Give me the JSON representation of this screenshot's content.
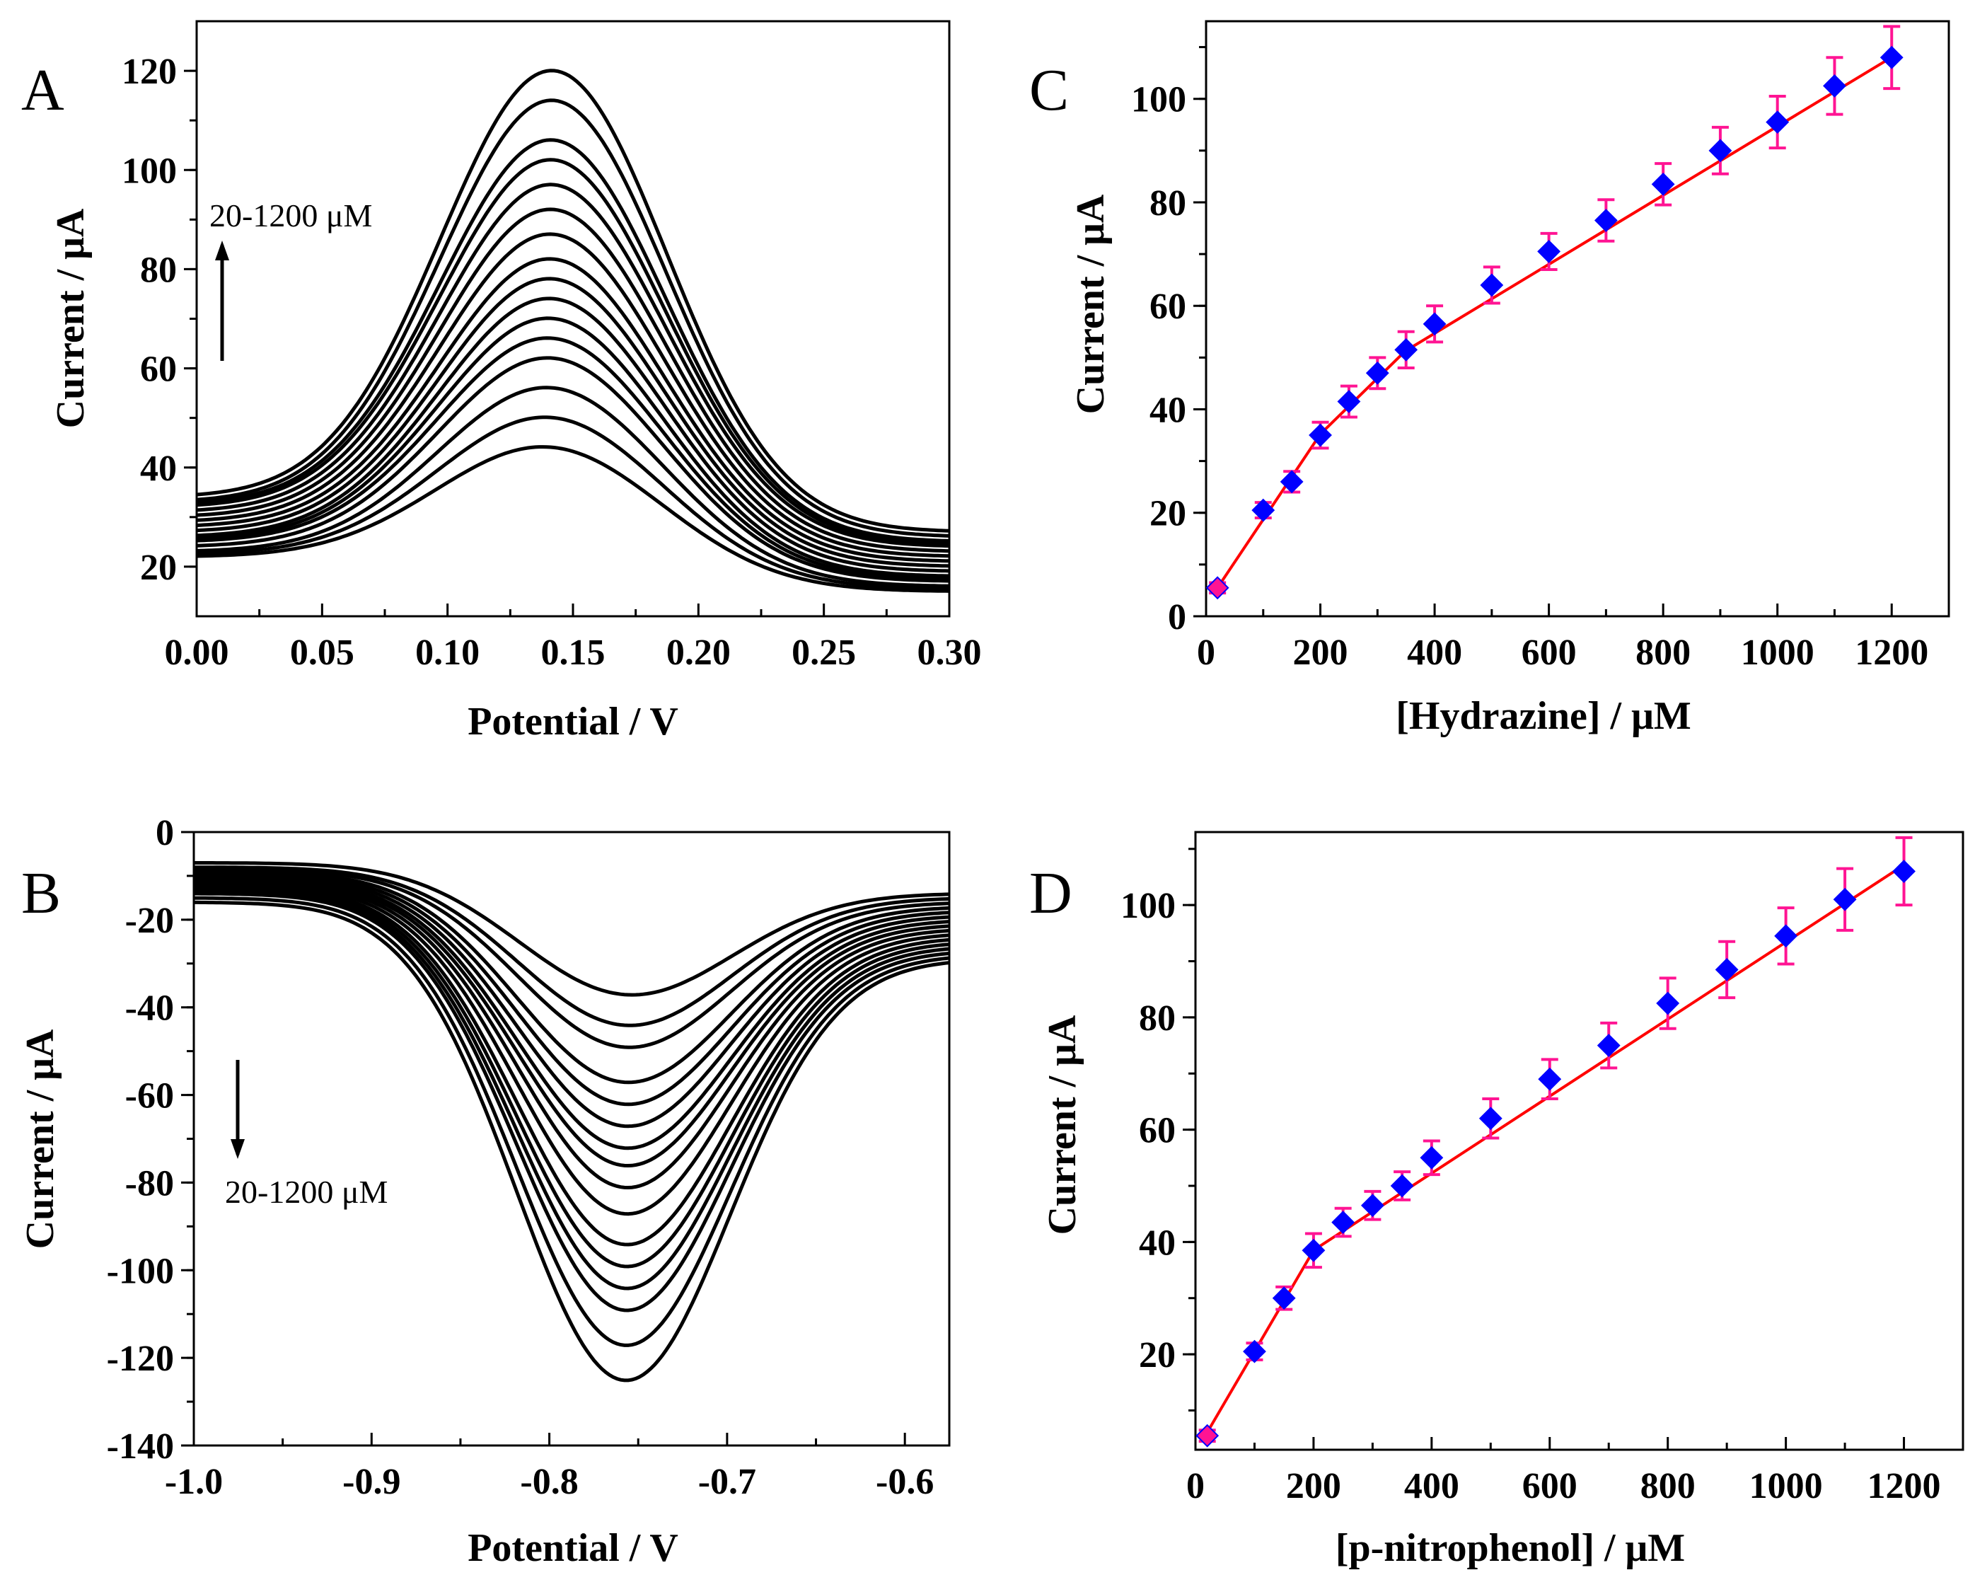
{
  "colors": {
    "axis": "#000000",
    "curve": "#000000",
    "fit": "#ff0000",
    "marker": "#0000ff",
    "error": "#ff1493",
    "first_marker": "#ff1493"
  },
  "chart_data": [
    {
      "panel": "A",
      "type": "line",
      "xlabel": "Potential / V",
      "ylabel": "Current / μA",
      "xlim": [
        0.0,
        0.3
      ],
      "ylim": [
        10,
        130
      ],
      "xticks": [
        0.0,
        0.05,
        0.1,
        0.15,
        0.2,
        0.25,
        0.3
      ],
      "xtick_labels": [
        "0.00",
        "0.05",
        "0.10",
        "0.15",
        "0.20",
        "0.25",
        "0.30"
      ],
      "yticks": [
        20,
        40,
        60,
        80,
        100,
        120
      ],
      "ytick_labels": [
        "20",
        "40",
        "60",
        "80",
        "100",
        "120"
      ],
      "annotation": "20-1200 μM",
      "arrow": "up",
      "peak_potential": 0.143,
      "peak_width": 0.045,
      "series": [
        {
          "name": "c1",
          "peak": 44,
          "start": 22,
          "end": 15
        },
        {
          "name": "c2",
          "peak": 50,
          "start": 22.5,
          "end": 15.5
        },
        {
          "name": "c3",
          "peak": 56,
          "start": 23,
          "end": 16
        },
        {
          "name": "c4",
          "peak": 62,
          "start": 24,
          "end": 17
        },
        {
          "name": "c5",
          "peak": 66,
          "start": 25,
          "end": 17.5
        },
        {
          "name": "c6",
          "peak": 70,
          "start": 25.5,
          "end": 18
        },
        {
          "name": "c7",
          "peak": 74,
          "start": 26,
          "end": 19
        },
        {
          "name": "c8",
          "peak": 78,
          "start": 27,
          "end": 20
        },
        {
          "name": "c9",
          "peak": 82,
          "start": 28,
          "end": 21
        },
        {
          "name": "c10",
          "peak": 87,
          "start": 29,
          "end": 22
        },
        {
          "name": "c11",
          "peak": 92,
          "start": 30,
          "end": 23
        },
        {
          "name": "c12",
          "peak": 97,
          "start": 31,
          "end": 24
        },
        {
          "name": "c13",
          "peak": 102,
          "start": 32,
          "end": 24.5
        },
        {
          "name": "c14",
          "peak": 106,
          "start": 32.5,
          "end": 25
        },
        {
          "name": "c15",
          "peak": 114,
          "start": 33,
          "end": 26
        },
        {
          "name": "c16",
          "peak": 120,
          "start": 34,
          "end": 27
        }
      ]
    },
    {
      "panel": "B",
      "type": "line",
      "xlabel": "Potential / V",
      "ylabel": "Current / μA",
      "xlim": [
        -1.0,
        -0.575
      ],
      "ylim": [
        -140,
        0
      ],
      "xticks": [
        -1.0,
        -0.9,
        -0.8,
        -0.7,
        -0.6
      ],
      "xtick_labels": [
        "-1.0",
        "-0.9",
        "-0.8",
        "-0.7",
        "-0.6"
      ],
      "yticks": [
        0,
        -20,
        -40,
        -60,
        -80,
        -100,
        -120,
        -140
      ],
      "ytick_labels": [
        "0",
        "-20",
        "-40",
        "-60",
        "-80",
        "-100",
        "-120",
        "-140"
      ],
      "annotation": "20-1200 μM",
      "arrow": "down",
      "peak_potential": -0.76,
      "peak_width": 0.06,
      "series": [
        {
          "name": "c1",
          "peak": -37,
          "start": -7,
          "end": -14
        },
        {
          "name": "c2",
          "peak": -44,
          "start": -8,
          "end": -15
        },
        {
          "name": "c3",
          "peak": -49,
          "start": -8.5,
          "end": -16
        },
        {
          "name": "c4",
          "peak": -57,
          "start": -9,
          "end": -17
        },
        {
          "name": "c5",
          "peak": -62,
          "start": -9.5,
          "end": -18
        },
        {
          "name": "c6",
          "peak": -67,
          "start": -10,
          "end": -19
        },
        {
          "name": "c7",
          "peak": -72,
          "start": -10.5,
          "end": -20
        },
        {
          "name": "c8",
          "peak": -76,
          "start": -11,
          "end": -21
        },
        {
          "name": "c9",
          "peak": -81,
          "start": -11.5,
          "end": -22
        },
        {
          "name": "c10",
          "peak": -87,
          "start": -12,
          "end": -23
        },
        {
          "name": "c11",
          "peak": -94,
          "start": -12.5,
          "end": -24
        },
        {
          "name": "c12",
          "peak": -99,
          "start": -13,
          "end": -25
        },
        {
          "name": "c13",
          "peak": -104,
          "start": -13.5,
          "end": -26
        },
        {
          "name": "c14",
          "peak": -109,
          "start": -14,
          "end": -27
        },
        {
          "name": "c15",
          "peak": -117,
          "start": -15,
          "end": -28
        },
        {
          "name": "c16",
          "peak": -125,
          "start": -16,
          "end": -29
        }
      ]
    },
    {
      "panel": "C",
      "type": "scatter",
      "xlabel": "[Hydrazine] / μM",
      "ylabel": "Current / μA",
      "xlim": [
        0,
        1300
      ],
      "ylim": [
        0,
        115
      ],
      "xticks": [
        0,
        200,
        400,
        600,
        800,
        1000,
        1200
      ],
      "xtick_labels": [
        "0",
        "200",
        "400",
        "600",
        "800",
        "1000",
        "1200"
      ],
      "yticks": [
        0,
        20,
        40,
        60,
        80,
        100
      ],
      "ytick_labels": [
        "0",
        "20",
        "40",
        "60",
        "80",
        "100"
      ],
      "x": [
        20,
        100,
        150,
        200,
        250,
        300,
        350,
        400,
        500,
        600,
        700,
        800,
        900,
        1000,
        1100,
        1200
      ],
      "y": [
        5.5,
        20.5,
        26,
        35,
        41.5,
        47,
        51.5,
        56.5,
        64,
        70.5,
        76.5,
        83.5,
        90,
        95.5,
        102.5,
        108
      ],
      "err": [
        1,
        1.5,
        2,
        2.5,
        3,
        3,
        3.5,
        3.5,
        3.5,
        3.5,
        4,
        4,
        4.5,
        5,
        5.5,
        6
      ],
      "fit_segments": [
        {
          "x": [
            20,
            200
          ],
          "slope": 0.165,
          "intercept": 2.2
        },
        {
          "x": [
            200,
            350
          ],
          "slope": 0.108,
          "intercept": 13.6
        },
        {
          "x": [
            350,
            1200
          ],
          "slope": 0.0667,
          "intercept": 28.0
        }
      ]
    },
    {
      "panel": "D",
      "type": "scatter",
      "xlabel": "[p-nitrophenol] / μM",
      "ylabel": "Current / μA",
      "xlim": [
        0,
        1300
      ],
      "ylim": [
        3,
        113
      ],
      "xticks": [
        0,
        200,
        400,
        600,
        800,
        1000,
        1200
      ],
      "xtick_labels": [
        "0",
        "200",
        "400",
        "600",
        "800",
        "1000",
        "1200"
      ],
      "yticks": [
        20,
        40,
        60,
        80,
        100
      ],
      "ytick_labels": [
        "20",
        "40",
        "60",
        "80",
        "100"
      ],
      "x": [
        20,
        100,
        150,
        200,
        250,
        300,
        350,
        400,
        500,
        600,
        700,
        800,
        900,
        1000,
        1100,
        1200
      ],
      "y": [
        5.5,
        20.5,
        30,
        38.5,
        43.5,
        46.5,
        50,
        55,
        62,
        69,
        75,
        82.5,
        88.5,
        94.5,
        101,
        106
      ],
      "err": [
        1,
        1.5,
        2,
        3,
        2.5,
        2.5,
        2.5,
        3,
        3.5,
        3.5,
        4,
        4.5,
        5,
        5,
        5.5,
        6
      ],
      "fit_segments": [
        {
          "x": [
            20,
            200
          ],
          "slope": 0.18,
          "intercept": 2.5
        },
        {
          "x": [
            200,
            1200
          ],
          "slope": 0.0686,
          "intercept": 24.8
        }
      ]
    }
  ]
}
